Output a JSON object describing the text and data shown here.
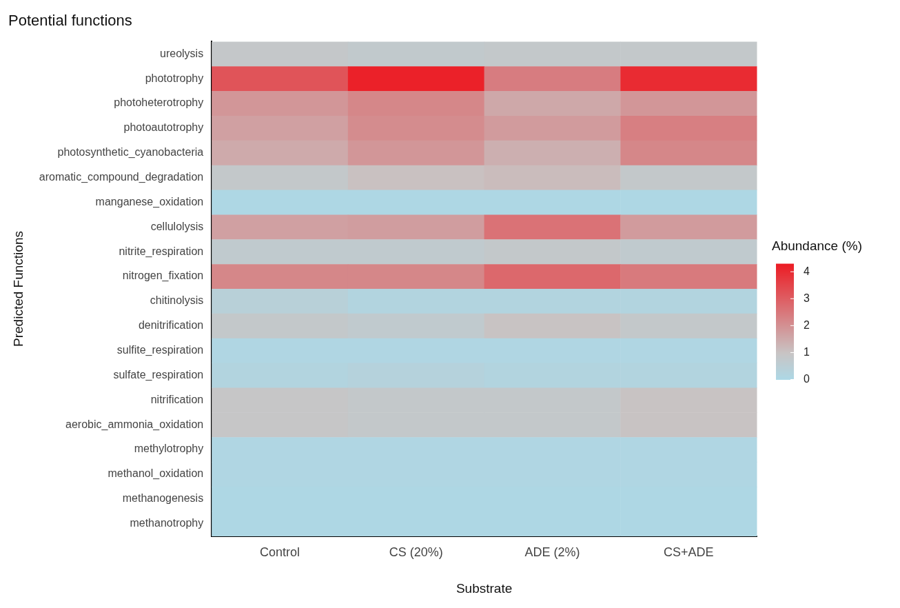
{
  "chart_data": {
    "type": "heatmap",
    "title": "Potential functions",
    "xlabel": "Substrate",
    "ylabel": "Predicted Functions",
    "clabel": "Abundance (%)",
    "categories": [
      "Control",
      "CS (20%)",
      "ADE (2%)",
      "CS+ADE"
    ],
    "y_categories": [
      "ureolysis",
      "phototrophy",
      "photoheterotrophy",
      "photoautotrophy",
      "photosynthetic_cyanobacteria",
      "aromatic_compound_degradation",
      "manganese_oxidation",
      "cellulolysis",
      "nitrite_respiration",
      "nitrogen_fixation",
      "chitinolysis",
      "denitrification",
      "sulfite_respiration",
      "sulfate_respiration",
      "nitrification",
      "aerobic_ammonia_oxidation",
      "methylotrophy",
      "methanol_oxidation",
      "methanogenesis",
      "methanotrophy"
    ],
    "cells": [
      [
        0.85,
        0.75,
        0.8,
        0.8
      ],
      [
        3.2,
        4.2,
        2.4,
        4.0
      ],
      [
        1.9,
        2.2,
        1.55,
        1.9
      ],
      [
        1.7,
        2.1,
        1.8,
        2.35
      ],
      [
        1.5,
        1.9,
        1.4,
        2.2
      ],
      [
        0.8,
        1.05,
        1.15,
        0.8
      ],
      [
        0.05,
        0.05,
        0.05,
        0.05
      ],
      [
        1.7,
        1.75,
        2.6,
        1.8
      ],
      [
        0.7,
        0.7,
        0.8,
        0.7
      ],
      [
        2.2,
        2.2,
        2.8,
        2.45
      ],
      [
        0.4,
        0.2,
        0.2,
        0.2
      ],
      [
        0.8,
        0.7,
        1.0,
        0.8
      ],
      [
        0.1,
        0.1,
        0.1,
        0.1
      ],
      [
        0.2,
        0.3,
        0.2,
        0.2
      ],
      [
        0.9,
        0.8,
        0.8,
        1.0
      ],
      [
        0.9,
        0.8,
        0.8,
        1.0
      ],
      [
        0.1,
        0.1,
        0.1,
        0.1
      ],
      [
        0.1,
        0.1,
        0.1,
        0.1
      ],
      [
        0.05,
        0.05,
        0.05,
        0.05
      ],
      [
        0.05,
        0.05,
        0.05,
        0.05
      ]
    ],
    "clim": [
      0,
      4.3
    ],
    "cticks": [
      0,
      1,
      2,
      3,
      4
    ]
  }
}
